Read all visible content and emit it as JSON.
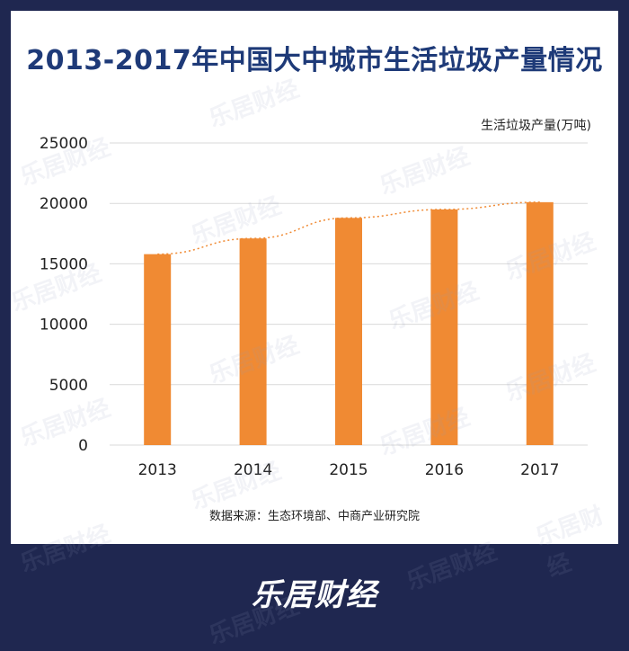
{
  "title": "2013-2017年中国大中城市生活垃圾产量情况",
  "unit_label": "生活垃圾产量(万吨)",
  "source": "数据来源：生态环境部、中商产业研究院",
  "brand": "乐居财经",
  "colors": {
    "bar": "#f08a33",
    "trend": "#f08a33",
    "grid": "#d9d9d9",
    "background": "#1f2750"
  },
  "chart_data": {
    "type": "bar",
    "categories": [
      "2013",
      "2014",
      "2015",
      "2016",
      "2017"
    ],
    "values": [
      15800,
      17100,
      18800,
      19500,
      20100
    ],
    "ylim": [
      0,
      25000
    ],
    "yticks": [
      "0",
      "5000",
      "10000",
      "15000",
      "20000",
      "25000"
    ],
    "ytick_values": [
      0,
      5000,
      10000,
      15000,
      20000,
      25000
    ],
    "ylabel": "生活垃圾产量(万吨)",
    "xlabel": "",
    "trendline": "dotted",
    "grid": true
  }
}
